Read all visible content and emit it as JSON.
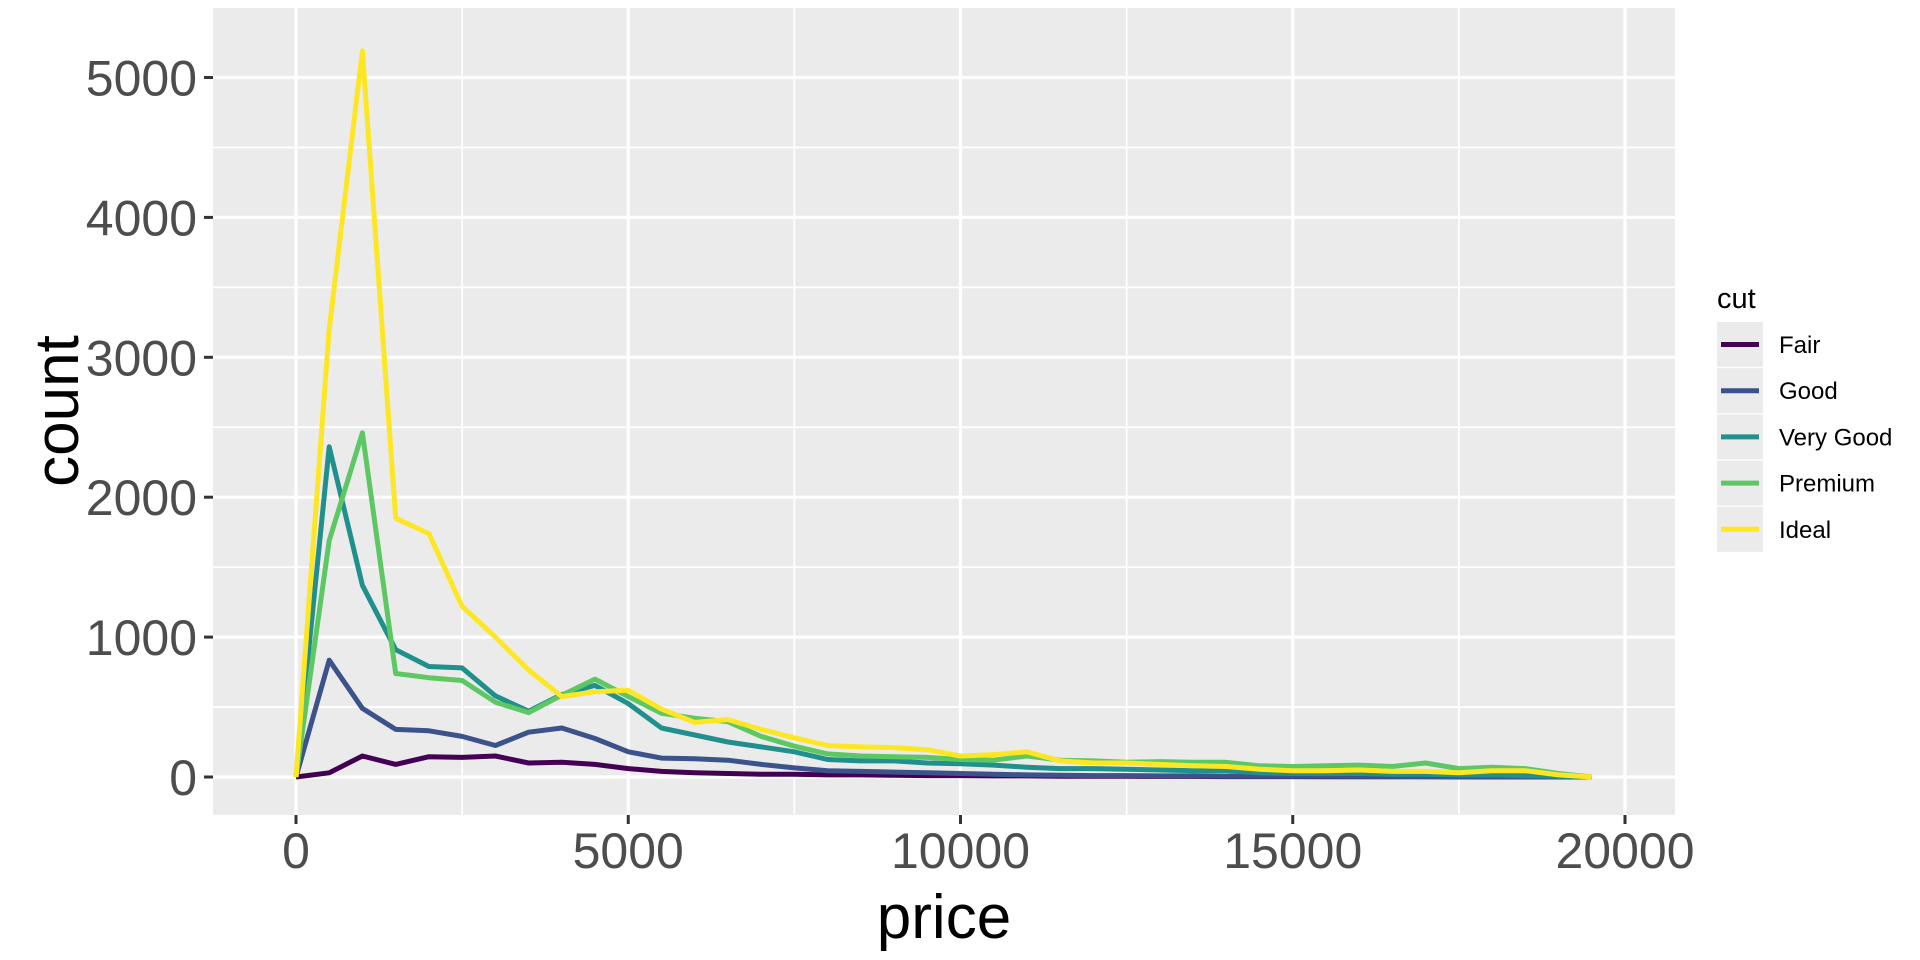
{
  "figure": {
    "background": "#FFFFFF",
    "panel_background": "#EBEBEB",
    "gridline_color": "#FFFFFF",
    "tick_label_color": "#4D4D4D",
    "axis_title_color": "#000000"
  },
  "legend": {
    "title": "cut",
    "position": "right",
    "entries": [
      {
        "label": "Fair",
        "color": "#440154"
      },
      {
        "label": "Good",
        "color": "#3B528B"
      },
      {
        "label": "Very Good",
        "color": "#21908C"
      },
      {
        "label": "Premium",
        "color": "#5DC863"
      },
      {
        "label": "Ideal",
        "color": "#FDE725"
      }
    ]
  },
  "chart_data": {
    "type": "line",
    "subtype": "frequency-polygon",
    "title": "",
    "xlabel": "price",
    "ylabel": "count",
    "legend_title": "cut",
    "legend_position": "right",
    "grid": true,
    "binwidth": 500,
    "xlim": [
      -1250,
      20750
    ],
    "ylim": [
      -260,
      5500
    ],
    "x_ticks": [
      0,
      5000,
      10000,
      15000,
      20000
    ],
    "x_tick_labels": [
      "0",
      "5000",
      "10000",
      "15000",
      "20000"
    ],
    "y_ticks": [
      0,
      1000,
      2000,
      3000,
      4000,
      5000
    ],
    "y_tick_labels": [
      "0",
      "1000",
      "2000",
      "3000",
      "4000",
      "5000"
    ],
    "x_minor": [
      2500,
      7500,
      12500,
      17500
    ],
    "y_minor": [
      500,
      1500,
      2500,
      3500,
      4500
    ],
    "x": [
      0,
      500,
      1000,
      1500,
      2000,
      2500,
      3000,
      3500,
      4000,
      4500,
      5000,
      5500,
      6000,
      6500,
      7000,
      7500,
      8000,
      8500,
      9000,
      9500,
      10000,
      10500,
      11000,
      11500,
      12000,
      12500,
      13000,
      13500,
      14000,
      14500,
      15000,
      15500,
      16000,
      16500,
      17000,
      17500,
      18000,
      18500,
      19000,
      19500
    ],
    "series": [
      {
        "name": "Fair",
        "color": "#440154",
        "values": [
          0,
          30,
          150,
          90,
          145,
          140,
          150,
          100,
          105,
          90,
          60,
          40,
          30,
          25,
          20,
          20,
          15,
          15,
          12,
          10,
          10,
          8,
          8,
          6,
          5,
          5,
          4,
          4,
          3,
          3,
          3,
          2,
          2,
          2,
          2,
          1,
          1,
          1,
          1,
          0
        ]
      },
      {
        "name": "Good",
        "color": "#3B528B",
        "values": [
          0,
          835,
          490,
          340,
          330,
          290,
          225,
          320,
          350,
          275,
          180,
          135,
          130,
          120,
          90,
          65,
          45,
          40,
          35,
          30,
          25,
          20,
          15,
          12,
          10,
          10,
          8,
          8,
          6,
          5,
          5,
          5,
          4,
          4,
          3,
          3,
          2,
          2,
          2,
          0
        ]
      },
      {
        "name": "Very Good",
        "color": "#21908C",
        "values": [
          0,
          2360,
          1370,
          910,
          790,
          780,
          580,
          470,
          590,
          655,
          525,
          350,
          300,
          250,
          215,
          180,
          125,
          115,
          115,
          100,
          95,
          85,
          70,
          60,
          60,
          55,
          50,
          45,
          45,
          30,
          25,
          25,
          25,
          20,
          20,
          15,
          15,
          10,
          5,
          0
        ]
      },
      {
        "name": "Premium",
        "color": "#5DC863",
        "values": [
          0,
          1690,
          2460,
          740,
          710,
          690,
          535,
          460,
          585,
          700,
          575,
          455,
          420,
          395,
          290,
          220,
          165,
          150,
          145,
          140,
          125,
          120,
          150,
          120,
          115,
          105,
          110,
          105,
          105,
          80,
          75,
          80,
          85,
          75,
          100,
          60,
          70,
          60,
          25,
          0
        ]
      },
      {
        "name": "Ideal",
        "color": "#FDE725",
        "values": [
          0,
          3200,
          5190,
          1850,
          1740,
          1220,
          1000,
          765,
          575,
          610,
          620,
          485,
          390,
          410,
          340,
          280,
          225,
          215,
          210,
          195,
          150,
          160,
          180,
          115,
          100,
          100,
          90,
          80,
          75,
          55,
          45,
          45,
          50,
          40,
          40,
          30,
          45,
          45,
          15,
          0
        ]
      }
    ]
  }
}
